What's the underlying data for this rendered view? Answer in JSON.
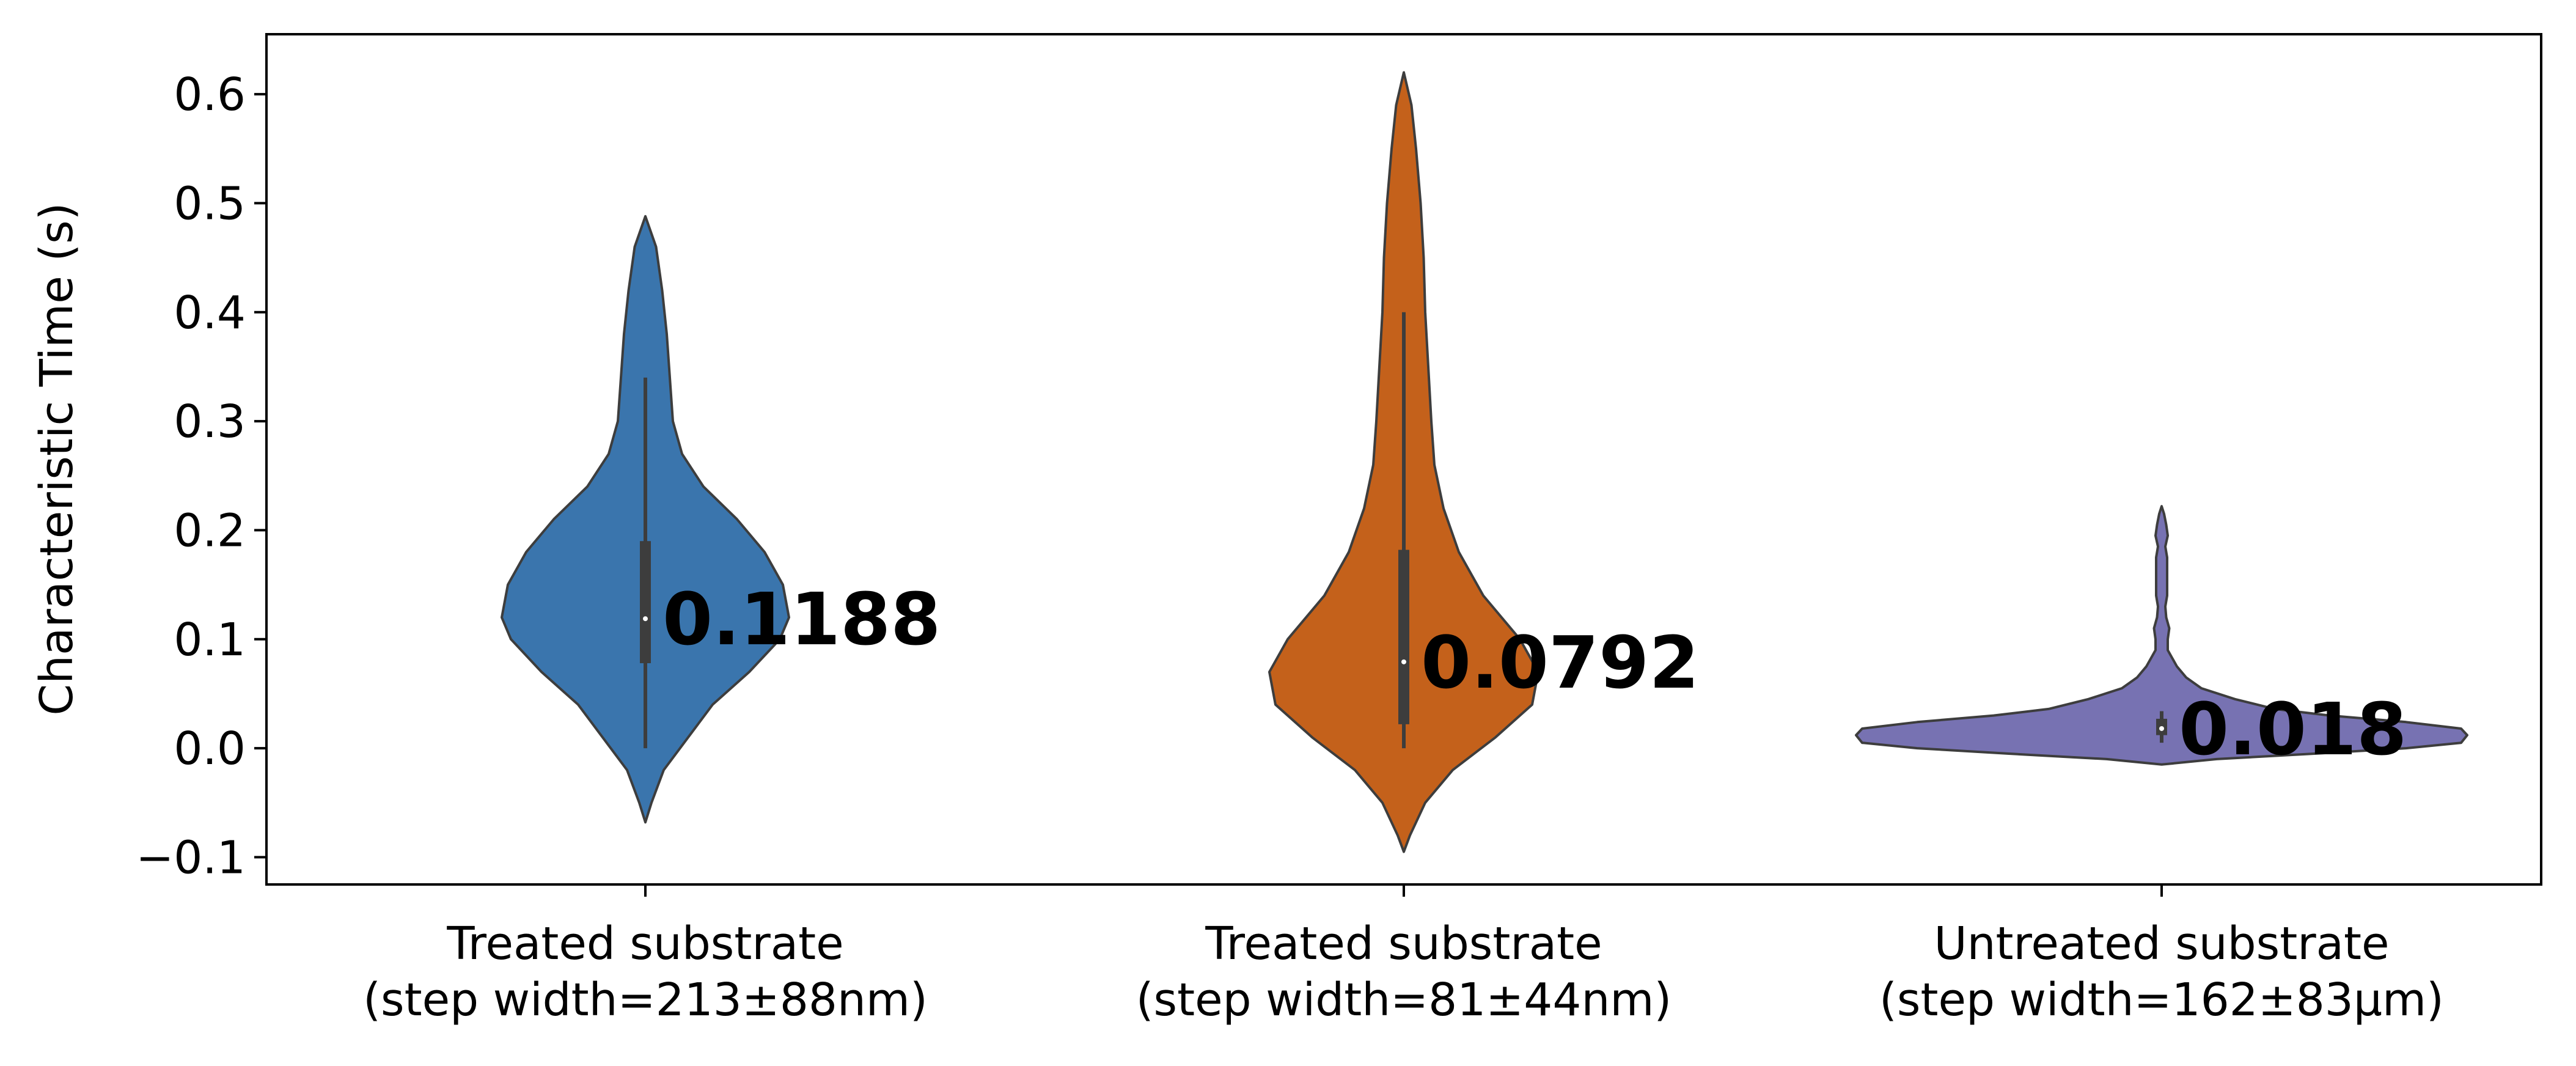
{
  "chart_data": {
    "type": "violin",
    "title": "",
    "xlabel": "",
    "ylabel": "Characteristic Time (s)",
    "ylim": [
      -0.125,
      0.655
    ],
    "yticks": [
      -0.1,
      0.0,
      0.1,
      0.2,
      0.3,
      0.4,
      0.5,
      0.6
    ],
    "ytick_labels": [
      "−0.1",
      "0.0",
      "0.1",
      "0.2",
      "0.3",
      "0.4",
      "0.5",
      "0.6"
    ],
    "categories": [
      {
        "label_line1": "Treated substrate",
        "label_line2": "(step width=213±88nm)",
        "color": "#3a75ad",
        "median": 0.1188,
        "median_label": "0.1188",
        "q1": 0.078,
        "q3": 0.19,
        "whisker_low": 0.0,
        "whisker_high": 0.34,
        "profile": [
          [
            -0.068,
            0.0
          ],
          [
            -0.05,
            0.02
          ],
          [
            -0.02,
            0.06
          ],
          [
            0.01,
            0.14
          ],
          [
            0.04,
            0.22
          ],
          [
            0.07,
            0.34
          ],
          [
            0.1,
            0.44
          ],
          [
            0.12,
            0.47
          ],
          [
            0.15,
            0.45
          ],
          [
            0.18,
            0.39
          ],
          [
            0.21,
            0.3
          ],
          [
            0.24,
            0.19
          ],
          [
            0.27,
            0.12
          ],
          [
            0.3,
            0.09
          ],
          [
            0.34,
            0.08
          ],
          [
            0.38,
            0.07
          ],
          [
            0.42,
            0.055
          ],
          [
            0.46,
            0.035
          ],
          [
            0.488,
            0.0
          ]
        ]
      },
      {
        "label_line1": "Treated substrate",
        "label_line2": "(step width=81±44nm)",
        "color": "#c4611b",
        "median": 0.0792,
        "median_label": "0.0792",
        "q1": 0.022,
        "q3": 0.182,
        "whisker_low": 0.0,
        "whisker_high": 0.4,
        "profile": [
          [
            -0.095,
            0.0
          ],
          [
            -0.08,
            0.02
          ],
          [
            -0.05,
            0.07
          ],
          [
            -0.02,
            0.16
          ],
          [
            0.01,
            0.3
          ],
          [
            0.04,
            0.42
          ],
          [
            0.07,
            0.44
          ],
          [
            0.1,
            0.38
          ],
          [
            0.14,
            0.26
          ],
          [
            0.18,
            0.18
          ],
          [
            0.22,
            0.13
          ],
          [
            0.26,
            0.1
          ],
          [
            0.3,
            0.09
          ],
          [
            0.35,
            0.08
          ],
          [
            0.4,
            0.07
          ],
          [
            0.45,
            0.065
          ],
          [
            0.5,
            0.055
          ],
          [
            0.55,
            0.04
          ],
          [
            0.59,
            0.025
          ],
          [
            0.62,
            0.0
          ]
        ]
      },
      {
        "label_line1": "Untreated substrate",
        "label_line2": "(step width=162±83μm)",
        "color": "#7772b2",
        "median": 0.018,
        "median_label": "0.018",
        "q1": 0.012,
        "q3": 0.027,
        "whisker_low": 0.005,
        "whisker_high": 0.034,
        "profile": [
          [
            -0.015,
            0.0
          ],
          [
            -0.01,
            0.18
          ],
          [
            -0.005,
            0.5
          ],
          [
            0.0,
            0.8
          ],
          [
            0.005,
            0.98
          ],
          [
            0.012,
            1.0
          ],
          [
            0.018,
            0.98
          ],
          [
            0.024,
            0.8
          ],
          [
            0.03,
            0.55
          ],
          [
            0.036,
            0.37
          ],
          [
            0.045,
            0.24
          ],
          [
            0.055,
            0.13
          ],
          [
            0.065,
            0.08
          ],
          [
            0.075,
            0.05
          ],
          [
            0.09,
            0.02
          ],
          [
            0.1,
            0.02
          ],
          [
            0.11,
            0.025
          ],
          [
            0.12,
            0.015
          ],
          [
            0.13,
            0.012
          ],
          [
            0.14,
            0.018
          ],
          [
            0.16,
            0.018
          ],
          [
            0.175,
            0.018
          ],
          [
            0.185,
            0.012
          ],
          [
            0.195,
            0.02
          ],
          [
            0.205,
            0.015
          ],
          [
            0.215,
            0.008
          ],
          [
            0.222,
            0.0
          ]
        ]
      }
    ],
    "grid": false,
    "legend": "none"
  }
}
